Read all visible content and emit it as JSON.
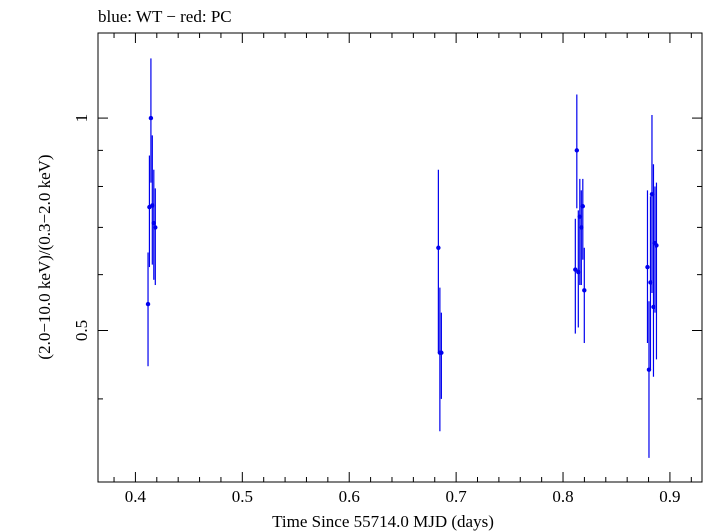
{
  "chart_data": {
    "type": "scatter",
    "title": "blue: WT − red: PC",
    "xlabel": "Time Since 55714.0 MJD (days)",
    "ylabel": "(2.0−10.0 keV)/(0.3−2.0 keV)",
    "xlim": [
      0.365,
      0.93
    ],
    "ylim": [
      0.305,
      1.32
    ],
    "y_scale": "log",
    "grid": false,
    "x_ticks": [
      0.4,
      0.5,
      0.6,
      0.7,
      0.8,
      0.9
    ],
    "x_tick_labels": [
      "0.4",
      "0.5",
      "0.6",
      "0.7",
      "0.8",
      "0.9"
    ],
    "y_ticks_labeled": [
      0.5,
      1
    ],
    "y_tick_labels": [
      "0.5",
      "1"
    ],
    "y_minor_ticks": [
      0.4,
      0.6,
      0.7,
      0.8,
      0.9
    ],
    "series": [
      {
        "name": "WT",
        "color": "#0000ee",
        "points": [
          {
            "x": 0.4118,
            "y": 0.545,
            "ylo": 0.445,
            "yhi": 0.645
          },
          {
            "x": 0.4131,
            "y": 0.748,
            "ylo": 0.615,
            "yhi": 0.885
          },
          {
            "x": 0.4145,
            "y": 1.0,
            "ylo": 0.81,
            "yhi": 1.215
          },
          {
            "x": 0.4158,
            "y": 0.752,
            "ylo": 0.62,
            "yhi": 0.945
          },
          {
            "x": 0.4172,
            "y": 0.71,
            "ylo": 0.59,
            "yhi": 0.845
          },
          {
            "x": 0.4186,
            "y": 0.7,
            "ylo": 0.58,
            "yhi": 0.795
          },
          {
            "x": 0.6834,
            "y": 0.655,
            "ylo": 0.465,
            "yhi": 0.845
          },
          {
            "x": 0.6848,
            "y": 0.465,
            "ylo": 0.36,
            "yhi": 0.575
          },
          {
            "x": 0.6862,
            "y": 0.465,
            "ylo": 0.4,
            "yhi": 0.53
          },
          {
            "x": 0.8115,
            "y": 0.61,
            "ylo": 0.495,
            "yhi": 0.72
          },
          {
            "x": 0.8129,
            "y": 0.9,
            "ylo": 0.745,
            "yhi": 1.08
          },
          {
            "x": 0.8143,
            "y": 0.605,
            "ylo": 0.505,
            "yhi": 0.74
          },
          {
            "x": 0.8157,
            "y": 0.725,
            "ylo": 0.58,
            "yhi": 0.82
          },
          {
            "x": 0.8171,
            "y": 0.7,
            "ylo": 0.58,
            "yhi": 0.79
          },
          {
            "x": 0.8185,
            "y": 0.75,
            "ylo": 0.63,
            "yhi": 0.82
          },
          {
            "x": 0.8199,
            "y": 0.57,
            "ylo": 0.48,
            "yhi": 0.655
          },
          {
            "x": 0.879,
            "y": 0.615,
            "ylo": 0.48,
            "yhi": 0.79
          },
          {
            "x": 0.8804,
            "y": 0.44,
            "ylo": 0.33,
            "yhi": 0.55
          },
          {
            "x": 0.8818,
            "y": 0.585,
            "ylo": 0.44,
            "yhi": 0.775
          },
          {
            "x": 0.8832,
            "y": 0.78,
            "ylo": 0.565,
            "yhi": 1.01
          },
          {
            "x": 0.8846,
            "y": 0.54,
            "ylo": 0.43,
            "yhi": 0.86
          },
          {
            "x": 0.886,
            "y": 0.665,
            "ylo": 0.53,
            "yhi": 0.8
          },
          {
            "x": 0.8874,
            "y": 0.66,
            "ylo": 0.455,
            "yhi": 0.81
          }
        ]
      }
    ]
  }
}
